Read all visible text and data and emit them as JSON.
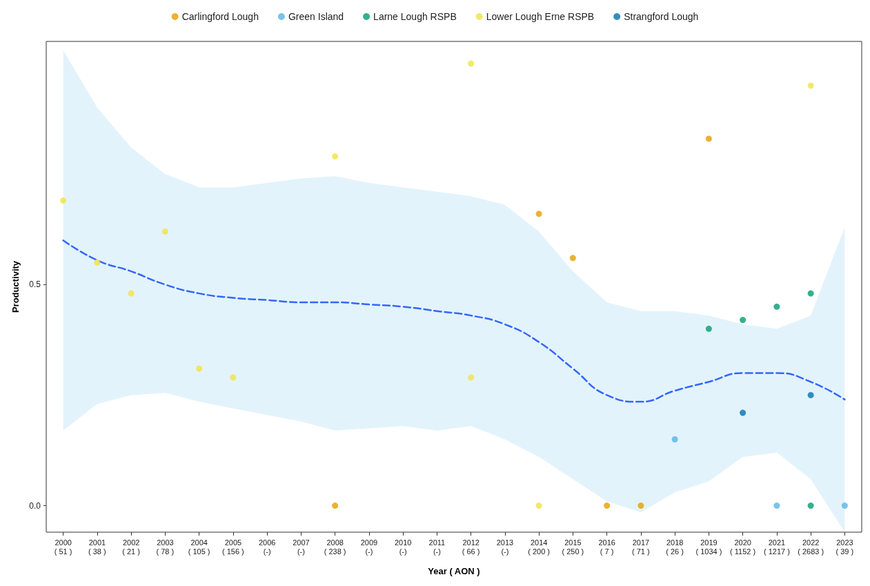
{
  "chart_data": {
    "type": "scatter",
    "xlabel": "Year ( AON )",
    "ylabel": "Productivity",
    "categories": [
      "2000\n( 51 )",
      "2001\n( 38 )",
      "2002\n( 21 )",
      "2003\n( 78 )",
      "2004\n( 105 )",
      "2005\n( 156 )",
      "2006\n(-)",
      "2007\n(-)",
      "2008\n( 238 )",
      "2009\n(-)",
      "2010\n(-)",
      "2011\n(-)",
      "2012\n( 66 )",
      "2013\n(-)",
      "2014\n( 200 )",
      "2015\n( 250 )",
      "2016\n( 7 )",
      "2017\n( 71 )",
      "2018\n( 26 )",
      "2019\n( 1034 )",
      "2020\n( 1152 )",
      "2021\n( 1217 )",
      "2022\n( 2683 )",
      "2023\n( 39 )"
    ],
    "ylim": [
      -0.06,
      1.05
    ],
    "yticks": [
      {
        "value": 0,
        "label": "0.0"
      },
      {
        "value": 0.5,
        "label": "0.5"
      }
    ],
    "grid": false,
    "legend": "top",
    "marker": "circle",
    "series": [
      {
        "name": "Carlingford Lough",
        "color": "#e69f00",
        "x": [
          "2008\n( 238 )",
          "2014\n( 200 )",
          "2015\n( 250 )",
          "2016\n( 7 )",
          "2017\n( 71 )",
          "2019\n( 1034 )"
        ],
        "values": [
          0,
          0.66,
          0.56,
          0,
          0,
          0.83
        ]
      },
      {
        "name": "Green Island",
        "color": "#56b4e9",
        "x": [
          "2018\n( 26 )",
          "2021\n( 1217 )",
          "2023\n( 39 )"
        ],
        "values": [
          0.15,
          0,
          0
        ]
      },
      {
        "name": "Larne Lough RSPB",
        "color": "#009e73",
        "x": [
          "2019\n( 1034 )",
          "2020\n( 1152 )",
          "2021\n( 1217 )",
          "2022\n( 2683 )",
          "2022\n( 2683 )"
        ],
        "values": [
          0.4,
          0.42,
          0.45,
          0.48,
          0
        ]
      },
      {
        "name": "Lower Lough Erne RSPB",
        "color": "#f0e442",
        "x": [
          "2000\n( 51 )",
          "2001\n( 38 )",
          "2002\n( 21 )",
          "2003\n( 78 )",
          "2004\n( 105 )",
          "2005\n( 156 )",
          "2008\n( 238 )",
          "2012\n( 66 )",
          "2012\n( 66 )",
          "2014\n( 200 )",
          "2022\n( 2683 )"
        ],
        "values": [
          0.69,
          0.55,
          0.48,
          0.62,
          0.31,
          0.29,
          0.79,
          1.0,
          0.29,
          0,
          0.95
        ]
      },
      {
        "name": "Strangford Lough",
        "color": "#0072b2",
        "x": [
          "2020\n( 1152 )",
          "2022\n( 2683 )"
        ],
        "values": [
          0.21,
          0.25
        ]
      },
      {
        "type": "line",
        "color": "#3366ff",
        "line_style": "dashed",
        "marker": "none",
        "values": [
          0.6,
          0.555,
          0.53,
          0.5,
          0.48,
          0.47,
          0.465,
          0.46,
          0.46,
          0.455,
          0.45,
          0.44,
          0.43,
          0.41,
          0.37,
          0.31,
          0.25,
          0.235,
          0.26,
          0.28,
          0.3,
          0.3,
          0.28,
          0.24
        ],
        "upper": [
          1.03,
          0.9,
          0.81,
          0.75,
          0.72,
          0.72,
          0.73,
          0.74,
          0.745,
          0.73,
          0.72,
          0.71,
          0.7,
          0.68,
          0.62,
          0.53,
          0.46,
          0.44,
          0.44,
          0.43,
          0.41,
          0.4,
          0.43,
          0.63
        ],
        "lower": [
          0.17,
          0.23,
          0.25,
          0.255,
          0.235,
          0.22,
          0.205,
          0.19,
          0.17,
          0.175,
          0.18,
          0.17,
          0.18,
          0.15,
          0.11,
          0.06,
          0.01,
          -0.015,
          0.03,
          0.055,
          0.11,
          0.12,
          0.06,
          -0.06
        ]
      }
    ]
  }
}
